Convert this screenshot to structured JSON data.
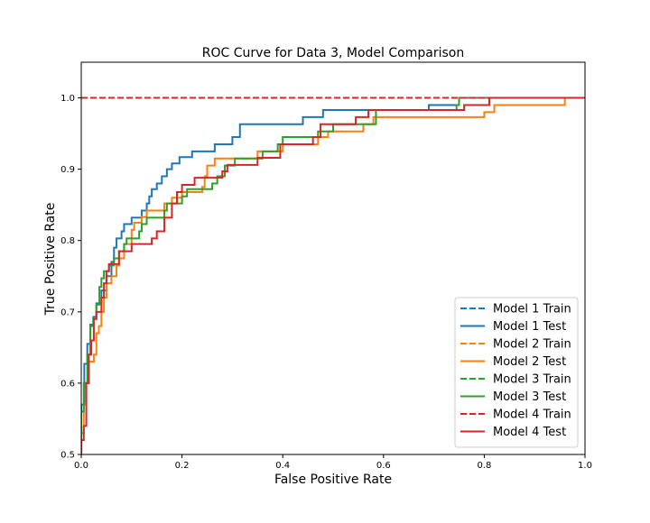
{
  "chart_data": {
    "type": "line",
    "title": "ROC Curve for Data 3, Model Comparison",
    "xlabel": "False Positive Rate",
    "ylabel": "True Positive Rate",
    "xlim": [
      0.0,
      1.0
    ],
    "ylim": [
      0.5,
      1.05
    ],
    "x_ticks": [
      0.0,
      0.2,
      0.4,
      0.6,
      0.8,
      1.0
    ],
    "x_tick_labels": [
      "0.0",
      "0.2",
      "0.4",
      "0.6",
      "0.8",
      "1.0"
    ],
    "y_ticks": [
      0.5,
      0.6,
      0.7,
      0.8,
      0.9,
      1.0
    ],
    "y_tick_labels": [
      "0.5",
      "0.6",
      "0.7",
      "0.8",
      "0.9",
      "1.0"
    ],
    "grid": false,
    "legend_position": "bottom-right",
    "series": [
      {
        "name": "Model 1 Train",
        "color": "#1f77b4",
        "dash": "dashed",
        "points": [
          [
            0.0,
            1.0
          ],
          [
            1.0,
            1.0
          ]
        ]
      },
      {
        "name": "Model 1 Test",
        "color": "#1f77b4",
        "dash": "solid",
        "points": [
          [
            0.0,
            0.5
          ],
          [
            0.0,
            0.57
          ],
          [
            0.006,
            0.57
          ],
          [
            0.006,
            0.627
          ],
          [
            0.012,
            0.627
          ],
          [
            0.012,
            0.655
          ],
          [
            0.018,
            0.655
          ],
          [
            0.018,
            0.682
          ],
          [
            0.024,
            0.682
          ],
          [
            0.024,
            0.693
          ],
          [
            0.03,
            0.693
          ],
          [
            0.03,
            0.712
          ],
          [
            0.04,
            0.712
          ],
          [
            0.04,
            0.73
          ],
          [
            0.05,
            0.73
          ],
          [
            0.05,
            0.75
          ],
          [
            0.06,
            0.75
          ],
          [
            0.06,
            0.77
          ],
          [
            0.065,
            0.77
          ],
          [
            0.065,
            0.79
          ],
          [
            0.07,
            0.79
          ],
          [
            0.07,
            0.803
          ],
          [
            0.08,
            0.803
          ],
          [
            0.08,
            0.813
          ],
          [
            0.085,
            0.813
          ],
          [
            0.085,
            0.823
          ],
          [
            0.1,
            0.823
          ],
          [
            0.1,
            0.832
          ],
          [
            0.12,
            0.832
          ],
          [
            0.12,
            0.842
          ],
          [
            0.13,
            0.842
          ],
          [
            0.13,
            0.852
          ],
          [
            0.135,
            0.852
          ],
          [
            0.135,
            0.862
          ],
          [
            0.14,
            0.862
          ],
          [
            0.14,
            0.872
          ],
          [
            0.15,
            0.872
          ],
          [
            0.15,
            0.88
          ],
          [
            0.16,
            0.88
          ],
          [
            0.16,
            0.89
          ],
          [
            0.17,
            0.89
          ],
          [
            0.17,
            0.9
          ],
          [
            0.18,
            0.9
          ],
          [
            0.18,
            0.908
          ],
          [
            0.195,
            0.908
          ],
          [
            0.195,
            0.917
          ],
          [
            0.22,
            0.917
          ],
          [
            0.22,
            0.925
          ],
          [
            0.265,
            0.925
          ],
          [
            0.265,
            0.935
          ],
          [
            0.3,
            0.935
          ],
          [
            0.3,
            0.945
          ],
          [
            0.315,
            0.945
          ],
          [
            0.315,
            0.963
          ],
          [
            0.44,
            0.963
          ],
          [
            0.44,
            0.973
          ],
          [
            0.48,
            0.973
          ],
          [
            0.48,
            0.983
          ],
          [
            0.69,
            0.983
          ],
          [
            0.69,
            0.99
          ],
          [
            0.75,
            0.99
          ],
          [
            0.75,
            1.0
          ],
          [
            1.0,
            1.0
          ]
        ]
      },
      {
        "name": "Model 2 Train",
        "color": "#ff7f0e",
        "dash": "dashed",
        "points": [
          [
            0.0,
            1.0
          ],
          [
            1.0,
            1.0
          ]
        ]
      },
      {
        "name": "Model 2 Test",
        "color": "#ff7f0e",
        "dash": "solid",
        "points": [
          [
            0.0,
            0.5
          ],
          [
            0.0,
            0.53
          ],
          [
            0.005,
            0.53
          ],
          [
            0.005,
            0.57
          ],
          [
            0.01,
            0.57
          ],
          [
            0.01,
            0.6
          ],
          [
            0.015,
            0.6
          ],
          [
            0.015,
            0.63
          ],
          [
            0.025,
            0.63
          ],
          [
            0.025,
            0.64
          ],
          [
            0.03,
            0.64
          ],
          [
            0.03,
            0.67
          ],
          [
            0.035,
            0.67
          ],
          [
            0.035,
            0.68
          ],
          [
            0.04,
            0.68
          ],
          [
            0.04,
            0.7
          ],
          [
            0.045,
            0.7
          ],
          [
            0.045,
            0.72
          ],
          [
            0.05,
            0.72
          ],
          [
            0.05,
            0.74
          ],
          [
            0.06,
            0.74
          ],
          [
            0.06,
            0.75
          ],
          [
            0.07,
            0.75
          ],
          [
            0.07,
            0.765
          ],
          [
            0.075,
            0.765
          ],
          [
            0.075,
            0.775
          ],
          [
            0.085,
            0.775
          ],
          [
            0.085,
            0.795
          ],
          [
            0.1,
            0.795
          ],
          [
            0.1,
            0.815
          ],
          [
            0.105,
            0.815
          ],
          [
            0.105,
            0.825
          ],
          [
            0.12,
            0.825
          ],
          [
            0.12,
            0.833
          ],
          [
            0.13,
            0.833
          ],
          [
            0.13,
            0.842
          ],
          [
            0.165,
            0.842
          ],
          [
            0.165,
            0.852
          ],
          [
            0.18,
            0.852
          ],
          [
            0.18,
            0.86
          ],
          [
            0.2,
            0.86
          ],
          [
            0.2,
            0.868
          ],
          [
            0.24,
            0.868
          ],
          [
            0.24,
            0.875
          ],
          [
            0.245,
            0.875
          ],
          [
            0.245,
            0.89
          ],
          [
            0.25,
            0.89
          ],
          [
            0.25,
            0.905
          ],
          [
            0.265,
            0.905
          ],
          [
            0.265,
            0.915
          ],
          [
            0.35,
            0.915
          ],
          [
            0.35,
            0.925
          ],
          [
            0.4,
            0.925
          ],
          [
            0.4,
            0.935
          ],
          [
            0.47,
            0.935
          ],
          [
            0.47,
            0.945
          ],
          [
            0.49,
            0.945
          ],
          [
            0.49,
            0.953
          ],
          [
            0.56,
            0.953
          ],
          [
            0.56,
            0.963
          ],
          [
            0.58,
            0.963
          ],
          [
            0.58,
            0.973
          ],
          [
            0.6,
            0.973
          ],
          [
            0.6,
            0.973
          ],
          [
            0.8,
            0.973
          ],
          [
            0.8,
            0.98
          ],
          [
            0.82,
            0.98
          ],
          [
            0.82,
            0.99
          ],
          [
            0.96,
            0.99
          ],
          [
            0.96,
            1.0
          ],
          [
            1.0,
            1.0
          ]
        ]
      },
      {
        "name": "Model 3 Train",
        "color": "#2ca02c",
        "dash": "dashed",
        "points": [
          [
            0.0,
            1.0
          ],
          [
            1.0,
            1.0
          ]
        ]
      },
      {
        "name": "Model 3 Test",
        "color": "#2ca02c",
        "dash": "solid",
        "points": [
          [
            0.0,
            0.5
          ],
          [
            0.0,
            0.56
          ],
          [
            0.005,
            0.56
          ],
          [
            0.005,
            0.6
          ],
          [
            0.012,
            0.6
          ],
          [
            0.012,
            0.64
          ],
          [
            0.018,
            0.64
          ],
          [
            0.018,
            0.68
          ],
          [
            0.024,
            0.68
          ],
          [
            0.024,
            0.69
          ],
          [
            0.03,
            0.69
          ],
          [
            0.03,
            0.71
          ],
          [
            0.036,
            0.71
          ],
          [
            0.036,
            0.735
          ],
          [
            0.04,
            0.735
          ],
          [
            0.04,
            0.747
          ],
          [
            0.045,
            0.747
          ],
          [
            0.045,
            0.757
          ],
          [
            0.055,
            0.757
          ],
          [
            0.055,
            0.765
          ],
          [
            0.065,
            0.765
          ],
          [
            0.065,
            0.775
          ],
          [
            0.075,
            0.775
          ],
          [
            0.075,
            0.785
          ],
          [
            0.085,
            0.785
          ],
          [
            0.085,
            0.795
          ],
          [
            0.09,
            0.795
          ],
          [
            0.09,
            0.803
          ],
          [
            0.115,
            0.803
          ],
          [
            0.115,
            0.813
          ],
          [
            0.12,
            0.813
          ],
          [
            0.12,
            0.823
          ],
          [
            0.13,
            0.823
          ],
          [
            0.13,
            0.832
          ],
          [
            0.165,
            0.832
          ],
          [
            0.165,
            0.842
          ],
          [
            0.17,
            0.842
          ],
          [
            0.17,
            0.852
          ],
          [
            0.2,
            0.852
          ],
          [
            0.2,
            0.862
          ],
          [
            0.21,
            0.862
          ],
          [
            0.21,
            0.872
          ],
          [
            0.26,
            0.872
          ],
          [
            0.26,
            0.88
          ],
          [
            0.27,
            0.88
          ],
          [
            0.27,
            0.89
          ],
          [
            0.285,
            0.89
          ],
          [
            0.285,
            0.905
          ],
          [
            0.305,
            0.905
          ],
          [
            0.305,
            0.915
          ],
          [
            0.36,
            0.915
          ],
          [
            0.36,
            0.925
          ],
          [
            0.39,
            0.925
          ],
          [
            0.39,
            0.935
          ],
          [
            0.4,
            0.935
          ],
          [
            0.4,
            0.945
          ],
          [
            0.47,
            0.945
          ],
          [
            0.47,
            0.953
          ],
          [
            0.5,
            0.953
          ],
          [
            0.5,
            0.963
          ],
          [
            0.585,
            0.963
          ],
          [
            0.585,
            0.983
          ],
          [
            0.745,
            0.983
          ],
          [
            0.745,
            0.99
          ],
          [
            0.75,
            0.99
          ],
          [
            0.75,
            1.0
          ],
          [
            1.0,
            1.0
          ]
        ]
      },
      {
        "name": "Model 4 Train",
        "color": "#d62728",
        "dash": "dashed",
        "points": [
          [
            0.0,
            1.0
          ],
          [
            1.0,
            1.0
          ]
        ]
      },
      {
        "name": "Model 4 Test",
        "color": "#d62728",
        "dash": "solid",
        "points": [
          [
            0.0,
            0.5
          ],
          [
            0.0,
            0.52
          ],
          [
            0.005,
            0.52
          ],
          [
            0.005,
            0.54
          ],
          [
            0.01,
            0.54
          ],
          [
            0.01,
            0.6
          ],
          [
            0.015,
            0.6
          ],
          [
            0.015,
            0.64
          ],
          [
            0.02,
            0.64
          ],
          [
            0.02,
            0.66
          ],
          [
            0.025,
            0.66
          ],
          [
            0.025,
            0.69
          ],
          [
            0.03,
            0.69
          ],
          [
            0.03,
            0.7
          ],
          [
            0.04,
            0.7
          ],
          [
            0.04,
            0.72
          ],
          [
            0.045,
            0.72
          ],
          [
            0.045,
            0.74
          ],
          [
            0.05,
            0.74
          ],
          [
            0.05,
            0.757
          ],
          [
            0.055,
            0.757
          ],
          [
            0.055,
            0.767
          ],
          [
            0.075,
            0.767
          ],
          [
            0.075,
            0.785
          ],
          [
            0.1,
            0.785
          ],
          [
            0.1,
            0.795
          ],
          [
            0.14,
            0.795
          ],
          [
            0.14,
            0.803
          ],
          [
            0.15,
            0.803
          ],
          [
            0.15,
            0.813
          ],
          [
            0.165,
            0.813
          ],
          [
            0.165,
            0.832
          ],
          [
            0.18,
            0.832
          ],
          [
            0.18,
            0.852
          ],
          [
            0.19,
            0.852
          ],
          [
            0.19,
            0.868
          ],
          [
            0.2,
            0.868
          ],
          [
            0.2,
            0.878
          ],
          [
            0.225,
            0.878
          ],
          [
            0.225,
            0.888
          ],
          [
            0.28,
            0.888
          ],
          [
            0.28,
            0.897
          ],
          [
            0.29,
            0.897
          ],
          [
            0.29,
            0.906
          ],
          [
            0.35,
            0.906
          ],
          [
            0.35,
            0.916
          ],
          [
            0.395,
            0.916
          ],
          [
            0.395,
            0.935
          ],
          [
            0.46,
            0.935
          ],
          [
            0.46,
            0.945
          ],
          [
            0.475,
            0.945
          ],
          [
            0.475,
            0.963
          ],
          [
            0.545,
            0.963
          ],
          [
            0.545,
            0.973
          ],
          [
            0.57,
            0.973
          ],
          [
            0.57,
            0.983
          ],
          [
            0.76,
            0.983
          ],
          [
            0.76,
            0.99
          ],
          [
            0.81,
            0.99
          ],
          [
            0.81,
            1.0
          ],
          [
            1.0,
            1.0
          ]
        ]
      }
    ]
  }
}
